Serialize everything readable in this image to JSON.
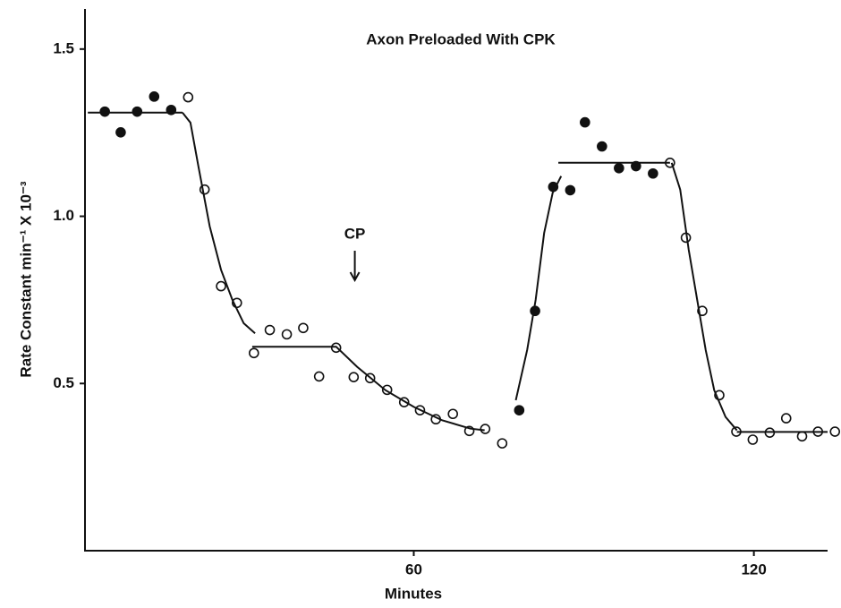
{
  "chart_data": {
    "type": "scatter",
    "title": "Axon Preloaded With CPK",
    "x_label": "Minutes",
    "y_label": "Rate Constant  min⁻¹ X 10⁻³",
    "annotation": "CP",
    "annotation_x": 49.6,
    "xlim": [
      2,
      133
    ],
    "xticks": [
      60,
      120
    ],
    "ylim": [
      0,
      1.62
    ],
    "yticks": [
      0.5,
      {
        "value": 1,
        "label": "1.0"
      },
      1.5
    ],
    "series": [
      {
        "marker": "filled",
        "color": "#111",
        "x": [
          5.5,
          8.3,
          11.2,
          14.2,
          17.2,
          78.6,
          81.4,
          84.6,
          87.6,
          90.2,
          93.2,
          96.2,
          99.2,
          102.2
        ],
        "values": [
          1.313,
          1.251,
          1.313,
          1.358,
          1.318,
          0.42,
          0.717,
          1.088,
          1.078,
          1.281,
          1.209,
          1.144,
          1.15,
          1.128
        ]
      },
      {
        "marker": "open",
        "color": "#111",
        "x": [
          20.2,
          23.1,
          26.0,
          28.8,
          31.8,
          34.6,
          37.6,
          40.5,
          43.3,
          46.3,
          49.4,
          52.3,
          55.3,
          58.3,
          61.1,
          63.9,
          66.9,
          69.8,
          72.6,
          75.6,
          105.2,
          108.0,
          110.9,
          113.9,
          116.9,
          119.8,
          122.8,
          125.7,
          128.5,
          131.3,
          134.3
        ],
        "values": [
          1.356,
          1.08,
          0.791,
          0.741,
          0.591,
          0.66,
          0.647,
          0.666,
          0.521,
          0.607,
          0.519,
          0.516,
          0.481,
          0.444,
          0.42,
          0.393,
          0.409,
          0.358,
          0.364,
          0.321,
          1.16,
          0.936,
          0.717,
          0.465,
          0.356,
          0.332,
          0.353,
          0.396,
          0.342,
          0.356,
          0.356
        ]
      },
      {
        "marker": "line",
        "color": "#111",
        "x": [
          2.5,
          19.2
        ],
        "values": [
          1.31,
          1.31
        ]
      },
      {
        "marker": "line",
        "color": "#111",
        "x": [
          19.2,
          20.6,
          22,
          24,
          26,
          28,
          30,
          32
        ],
        "values": [
          1.31,
          1.28,
          1.15,
          0.97,
          0.84,
          0.75,
          0.68,
          0.65
        ]
      },
      {
        "marker": "line",
        "color": "#111",
        "x": [
          31.5,
          46.3,
          50,
          55,
          60,
          65,
          70,
          72.5
        ],
        "values": [
          0.61,
          0.61,
          0.55,
          0.48,
          0.43,
          0.39,
          0.365,
          0.36
        ]
      },
      {
        "marker": "line",
        "color": "#111",
        "x": [
          78,
          80,
          81.5,
          83,
          84.5,
          86
        ],
        "values": [
          0.45,
          0.6,
          0.75,
          0.95,
          1.07,
          1.12
        ]
      },
      {
        "marker": "line",
        "color": "#111",
        "x": [
          85.5,
          105.2
        ],
        "values": [
          1.16,
          1.16
        ]
      },
      {
        "marker": "line",
        "color": "#111",
        "x": [
          105.5,
          107,
          108.5,
          110,
          111.5,
          113,
          115,
          117
        ],
        "values": [
          1.16,
          1.08,
          0.9,
          0.75,
          0.6,
          0.48,
          0.4,
          0.36
        ]
      },
      {
        "marker": "line",
        "color": "#111",
        "x": [
          117,
          133
        ],
        "values": [
          0.355,
          0.355
        ]
      }
    ]
  }
}
